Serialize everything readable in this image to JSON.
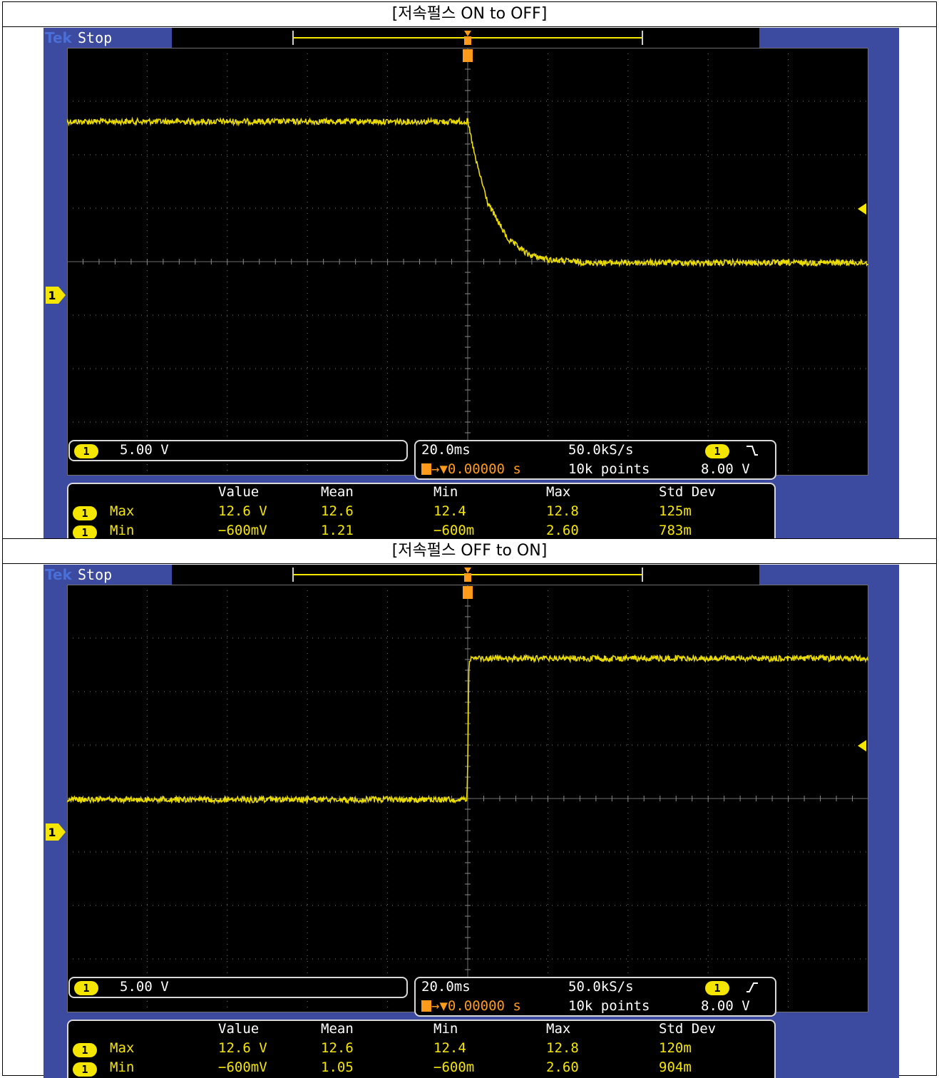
{
  "colors": {
    "trace": "#f5e600",
    "bezel": "#3c4aa0",
    "grid": "#8a8a8a",
    "trigger_marker": "#ff9a1a",
    "screen": "#000000"
  },
  "panels": [
    {
      "caption": "[저속펄스 ON to OFF]",
      "brand": "Tek",
      "status": "Stop",
      "channel_label": "1",
      "channel_scale": "5.00 V",
      "timebase": "20.0ms",
      "sample_rate": "50.0kS/s",
      "trigger_position": "→▼0.00000 s",
      "record_length": "10k points",
      "trigger_slope": "falling",
      "trigger_level": "8.00 V",
      "measurements": {
        "headers": [
          "Value",
          "Mean",
          "Min",
          "Max",
          "Std Dev"
        ],
        "rows": [
          {
            "name": "Max",
            "value": "12.6 V",
            "mean": "12.6",
            "min": "12.4",
            "max": "12.8",
            "std": "125m"
          },
          {
            "name": "Min",
            "value": "−600mV",
            "mean": "1.21",
            "min": "−600m",
            "max": "2.60",
            "std": "783m"
          }
        ]
      },
      "chart_data": {
        "type": "line",
        "series": [
          {
            "x": [
              -100,
              0,
              2,
              5,
              10,
              15,
              20,
              30,
              50,
              100
            ],
            "y": [
              12.6,
              12.6,
              9.0,
              5.0,
              1.6,
              0.2,
              -0.3,
              -0.6,
              -0.6,
              -0.6
            ]
          }
        ],
        "xlim": [
          -100,
          100
        ],
        "ylim": [
          -20.5,
          19.5
        ],
        "x_unit": "ms",
        "y_unit": "V",
        "grid": true,
        "trigger_level_V": 8.0
      }
    },
    {
      "caption": "[저속펄스 OFF to ON]",
      "brand": "Tek",
      "status": "Stop",
      "channel_label": "1",
      "channel_scale": "5.00 V",
      "timebase": "20.0ms",
      "sample_rate": "50.0kS/s",
      "trigger_position": "→▼0.00000 s",
      "record_length": "10k points",
      "trigger_slope": "rising",
      "trigger_level": "8.00 V",
      "measurements": {
        "headers": [
          "Value",
          "Mean",
          "Min",
          "Max",
          "Std Dev"
        ],
        "rows": [
          {
            "name": "Max",
            "value": "12.6 V",
            "mean": "12.6",
            "min": "12.4",
            "max": "12.8",
            "std": "120m"
          },
          {
            "name": "Min",
            "value": "−600mV",
            "mean": "1.05",
            "min": "−600m",
            "max": "2.60",
            "std": "904m"
          }
        ]
      },
      "chart_data": {
        "type": "line",
        "series": [
          {
            "x": [
              -100,
              -0.2,
              0,
              0.3,
              1,
              100
            ],
            "y": [
              -0.6,
              -0.6,
              3.0,
              12.0,
              12.6,
              12.6
            ]
          }
        ],
        "xlim": [
          -100,
          100
        ],
        "ylim": [
          -20.5,
          19.5
        ],
        "x_unit": "ms",
        "y_unit": "V",
        "grid": true,
        "trigger_level_V": 8.0
      }
    }
  ]
}
